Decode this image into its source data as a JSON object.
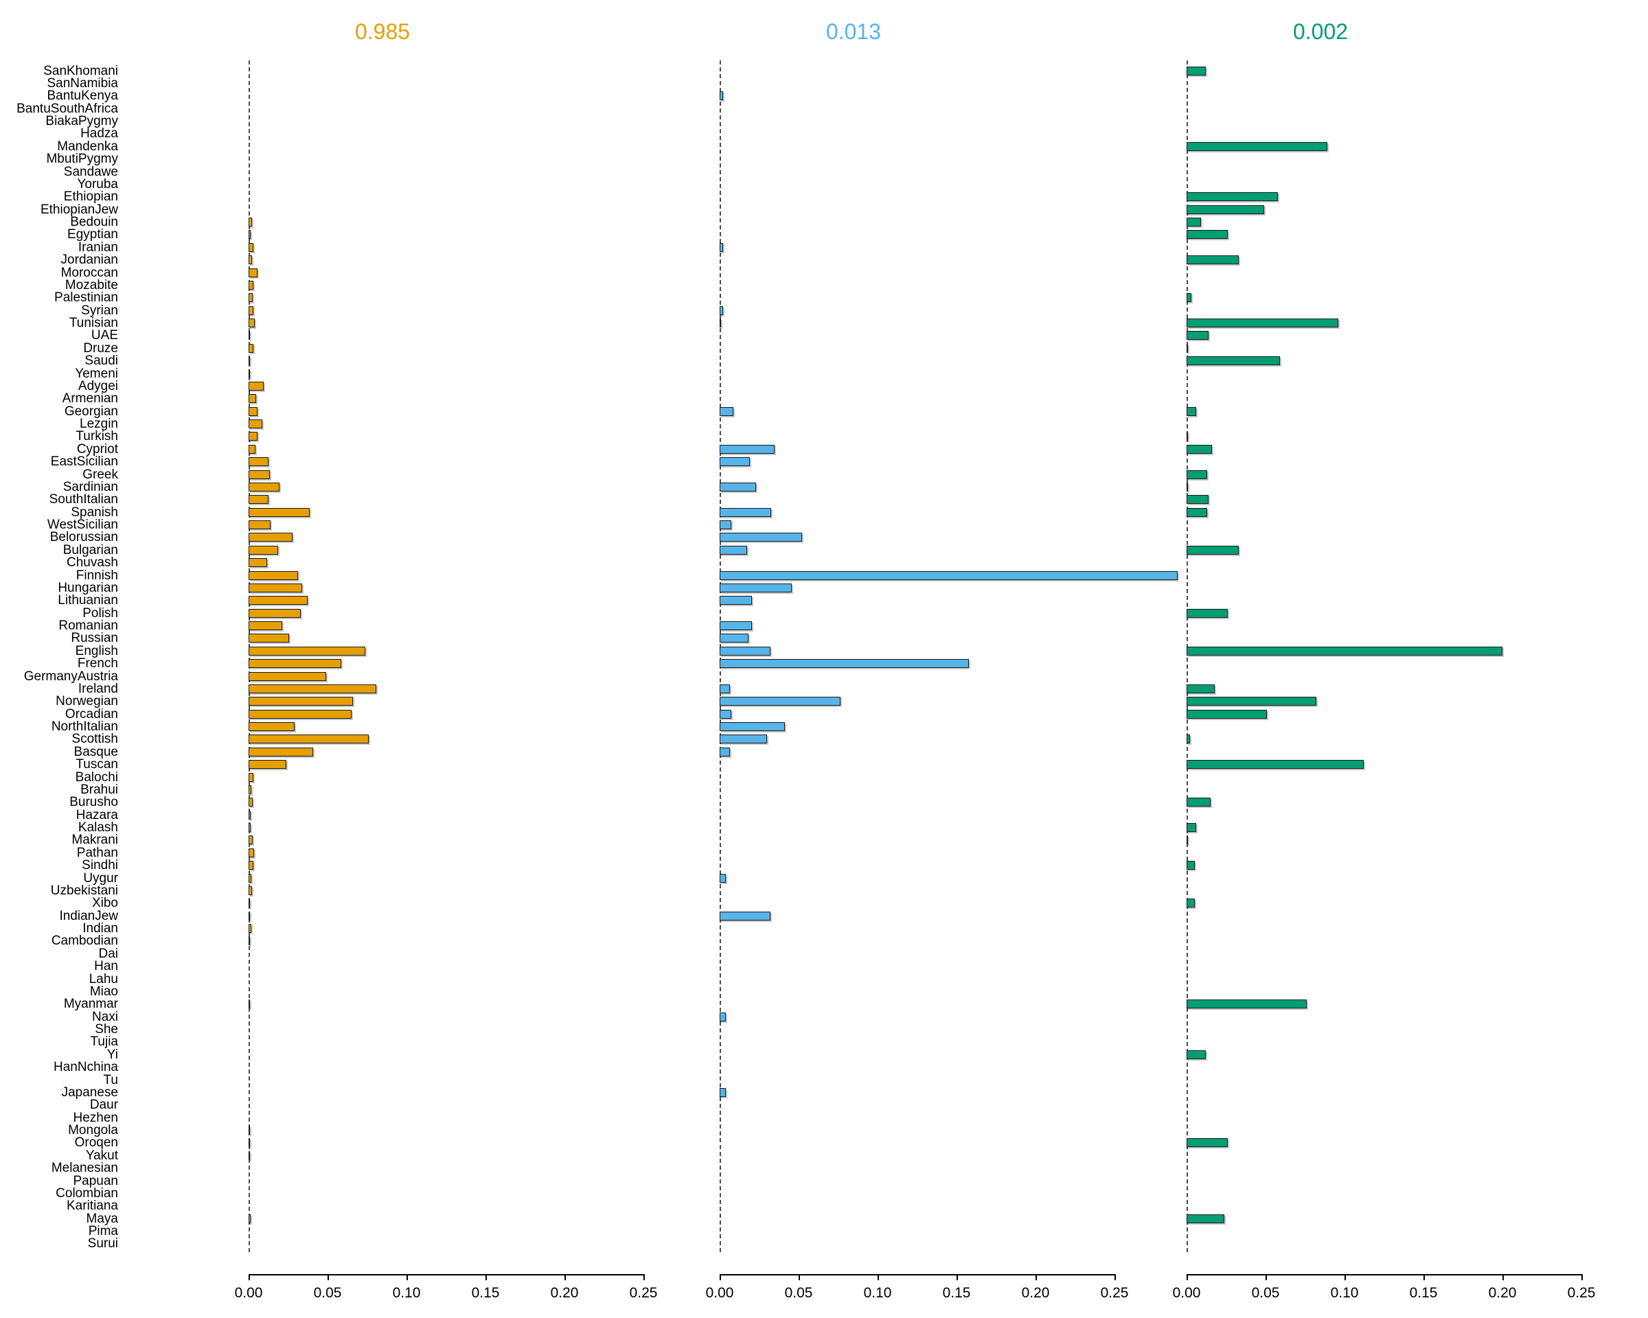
{
  "chart_data": {
    "type": "bar",
    "orientation": "horizontal",
    "title": "",
    "xlabel": "",
    "ylabel": "",
    "x_axis": {
      "min": 0,
      "max": 0.25,
      "tick_values": [
        0,
        0.05,
        0.1,
        0.15,
        0.2,
        0.25
      ],
      "tick_labels": [
        "0.00",
        "0.05",
        "0.10",
        "0.15",
        "0.20",
        "0.25"
      ]
    },
    "grid": false,
    "zero_line_style": "dashed",
    "categories": [
      "SanKhomani",
      "SanNamibia",
      "BantuKenya",
      "BantuSouthAfrica",
      "BiakaPygmy",
      "Hadza",
      "Mandenka",
      "MbutiPygmy",
      "Sandawe",
      "Yoruba",
      "Ethiopian",
      "EthiopianJew",
      "Bedouin",
      "Egyptian",
      "Iranian",
      "Jordanian",
      "Moroccan",
      "Mozabite",
      "Palestinian",
      "Syrian",
      "Tunisian",
      "UAE",
      "Druze",
      "Saudi",
      "Yemeni",
      "Adygei",
      "Armenian",
      "Georgian",
      "Lezgin",
      "Turkish",
      "Cypriot",
      "EastSicilian",
      "Greek",
      "Sardinian",
      "SouthItalian",
      "Spanish",
      "WestSicilian",
      "Belorussian",
      "Bulgarian",
      "Chuvash",
      "Finnish",
      "Hungarian",
      "Lithuanian",
      "Polish",
      "Romanian",
      "Russian",
      "English",
      "French",
      "GermanyAustria",
      "Ireland",
      "Norwegian",
      "Orcadian",
      "NorthItalian",
      "Scottish",
      "Basque",
      "Tuscan",
      "Balochi",
      "Brahui",
      "Burusho",
      "Hazara",
      "Kalash",
      "Makrani",
      "Pathan",
      "Sindhi",
      "Uygur",
      "Uzbekistani",
      "Xibo",
      "IndianJew",
      "Indian",
      "Cambodian",
      "Dai",
      "Han",
      "Lahu",
      "Miao",
      "Myanmar",
      "Naxi",
      "She",
      "Tujia",
      "Yi",
      "HanNchina",
      "Tu",
      "Japanese",
      "Daur",
      "Hezhen",
      "Mongola",
      "Oroqen",
      "Yakut",
      "Melanesian",
      "Papuan",
      "Colombian",
      "Karitiana",
      "Maya",
      "Pima",
      "Surui"
    ],
    "series": [
      {
        "name": "0.985",
        "color": "#E69F00",
        "values": [
          0,
          0,
          0,
          0,
          0,
          0,
          0,
          0,
          0,
          0,
          0,
          0,
          0.002,
          0.0015,
          0.0032,
          0.002,
          0.0058,
          0.0029,
          0.0026,
          0.0032,
          0.004,
          0.0005,
          0.0029,
          0.001,
          0.0005,
          0.0094,
          0.0048,
          0.0058,
          0.0087,
          0.0058,
          0.0043,
          0.0125,
          0.0136,
          0.0196,
          0.0126,
          0.0388,
          0.0138,
          0.0277,
          0.0189,
          0.0116,
          0.0313,
          0.0341,
          0.0372,
          0.0331,
          0.0213,
          0.0255,
          0.0737,
          0.0585,
          0.049,
          0.0807,
          0.066,
          0.065,
          0.029,
          0.0759,
          0.041,
          0.0237,
          0.0032,
          0.0019,
          0.0028,
          0.0014,
          0.0015,
          0.0025,
          0.0036,
          0.0032,
          0.0017,
          0.0021,
          0.0006,
          0.0008,
          0.0018,
          0.0003,
          0,
          0,
          0,
          0,
          0.0004,
          0,
          0,
          0,
          0,
          0,
          0,
          0,
          0,
          0,
          0.0005,
          0.0008,
          0.001,
          0,
          0,
          0,
          0,
          0.0015,
          0,
          0
        ]
      },
      {
        "name": "0.013",
        "color": "#56B4E9",
        "values": [
          0,
          0,
          0.002,
          0,
          0,
          0,
          0,
          0,
          0,
          0,
          0,
          0,
          0,
          0,
          0.002,
          0,
          0,
          0,
          0,
          0.002,
          0.001,
          0,
          0,
          0,
          0,
          0,
          0,
          0.0087,
          0,
          0,
          0.0349,
          0.019,
          0,
          0.023,
          0,
          0.0327,
          0.0073,
          0.0523,
          0.0175,
          0,
          0.29,
          0.0456,
          0.0204,
          0,
          0.0204,
          0.0183,
          0.032,
          0.158,
          0,
          0.0067,
          0.0764,
          0.0074,
          0.0413,
          0.0302,
          0.0067,
          0,
          0,
          0,
          0,
          0,
          0,
          0,
          0,
          0,
          0.004,
          0,
          0,
          0.032,
          0,
          0,
          0,
          0,
          0,
          0,
          0,
          0.004,
          0,
          0,
          0,
          0,
          0,
          0.004,
          0,
          0,
          0,
          0,
          0,
          0,
          0,
          0,
          0,
          0,
          0,
          0
        ]
      },
      {
        "name": "0.002",
        "color": "#009E73",
        "values": [
          0.012,
          0,
          0,
          0,
          0,
          0,
          0.089,
          0,
          0,
          0,
          0.058,
          0.049,
          0.009,
          0.026,
          0,
          0.033,
          0,
          0,
          0.003,
          0,
          0.096,
          0.014,
          0.001,
          0.059,
          0,
          0,
          0,
          0.006,
          0,
          0.001,
          0.016,
          0,
          0.013,
          0.001,
          0.014,
          0.013,
          0,
          0,
          0.033,
          0,
          0,
          0,
          0,
          0.026,
          0,
          0,
          0.2,
          0,
          0,
          0.018,
          0.082,
          0.051,
          0,
          0.002,
          0,
          0.112,
          0,
          0,
          0.015,
          0,
          0.006,
          0.001,
          0,
          0.005,
          0,
          0,
          0.005,
          0,
          0,
          0,
          0,
          0,
          0,
          0,
          0.076,
          0,
          0,
          0,
          0.012,
          0,
          0,
          0,
          0,
          0,
          0,
          0.026,
          0,
          0,
          0,
          0,
          0,
          0.024,
          0,
          0
        ]
      }
    ]
  },
  "layout_note_values_visible_only": true
}
